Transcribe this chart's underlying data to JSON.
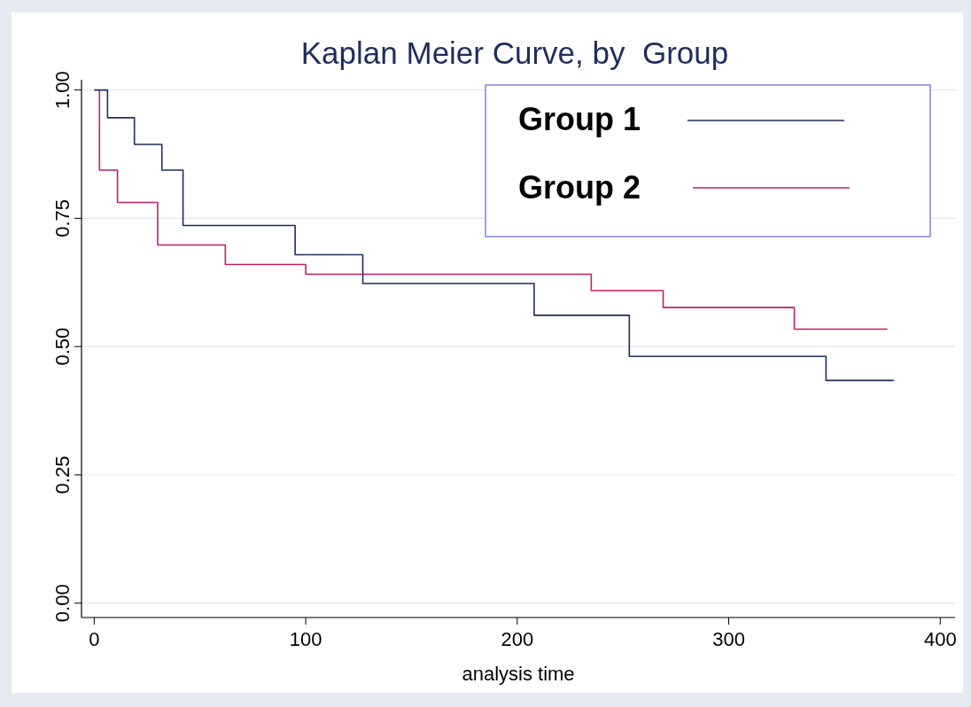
{
  "chart_data": {
    "type": "step",
    "title": "Kaplan Meier Curve, by  Group",
    "xlabel": "analysis time",
    "xlim": [
      -6,
      407
    ],
    "xticks": [
      0,
      100,
      200,
      300,
      400
    ],
    "ylim": [
      -0.028,
      1.02
    ],
    "yticks": [
      {
        "value": 0,
        "label": "0.00"
      },
      {
        "value": 0.25,
        "label": "0.25"
      },
      {
        "value": 0.5,
        "label": "0.50"
      },
      {
        "value": 0.75,
        "label": "0.75"
      },
      {
        "value": 1,
        "label": "1.00"
      }
    ],
    "grid": "y",
    "legend": "top right",
    "series": [
      {
        "name": "Group 1",
        "color": "#1f2d5c",
        "x": [
          0,
          6.3,
          19,
          32,
          42,
          95,
          127,
          208,
          253,
          346,
          378
        ],
        "values": [
          1,
          0.946,
          0.894,
          0.844,
          0.736,
          0.679,
          0.623,
          0.561,
          0.481,
          0.434,
          0.434
        ]
      },
      {
        "name": "Group 2",
        "color": "#c0206a",
        "x": [
          2.5,
          2.5,
          11,
          30,
          62,
          100,
          235,
          269,
          331,
          375
        ],
        "values": [
          1,
          0.844,
          0.781,
          0.698,
          0.66,
          0.641,
          0.609,
          0.576,
          0.534,
          0.534
        ]
      }
    ]
  }
}
